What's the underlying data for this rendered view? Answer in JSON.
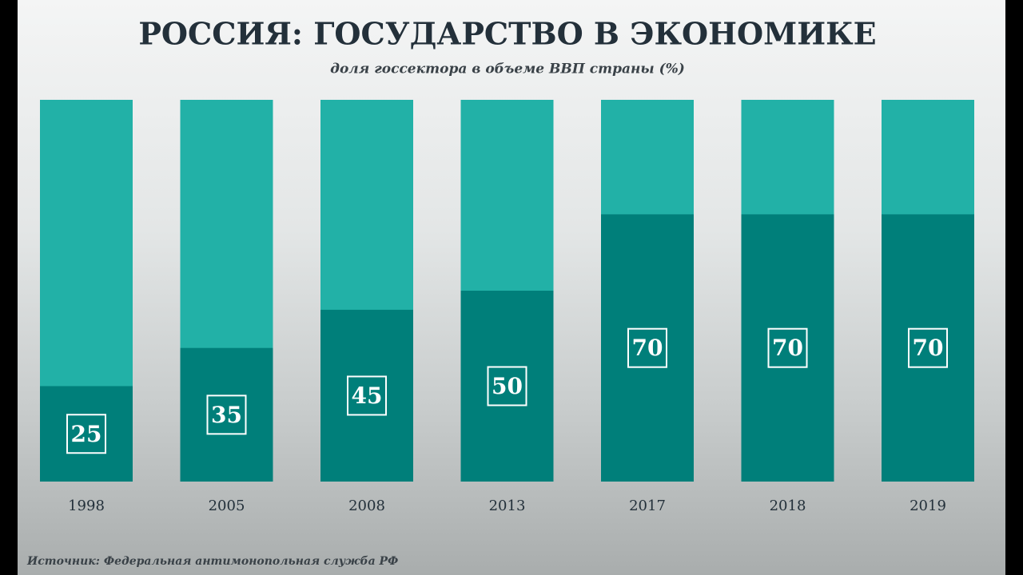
{
  "chart_data": {
    "type": "bar",
    "title": "РОССИЯ: ГОСУДАРСТВО В ЭКОНОМИКЕ",
    "subtitle": "доля госсектора в объеме ВВП страны (%)",
    "categories": [
      "1998",
      "2005",
      "2008",
      "2013",
      "2017",
      "2018",
      "2019"
    ],
    "values": [
      25,
      35,
      45,
      50,
      70,
      70,
      70
    ],
    "color": "#007f7a",
    "track_color": "#22b1a7",
    "ylim": [
      0,
      100
    ],
    "source": "Источник: Федеральная антимонопольная служба РФ"
  }
}
